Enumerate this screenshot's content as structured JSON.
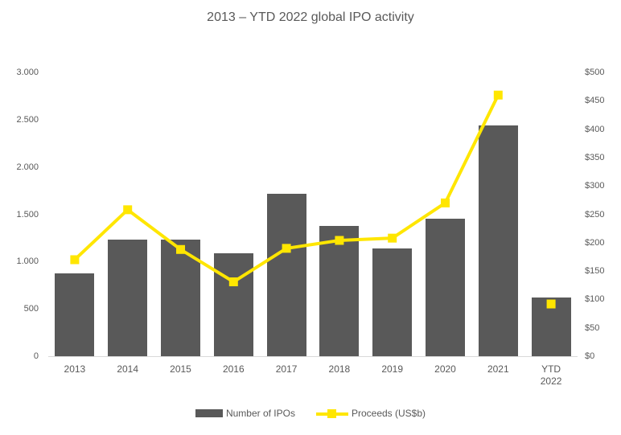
{
  "title": "2013 – YTD 2022 global IPO activity",
  "colors": {
    "bar": "#595959",
    "line": "#ffe600",
    "text": "#595959",
    "axis_line": "#d9d9d9",
    "background": "#ffffff"
  },
  "chart_data": {
    "type": "bar",
    "subtype": "combo-bar-line-dual-axis",
    "title": "2013 – YTD 2022 global IPO activity",
    "grid": false,
    "legend_position": "bottom",
    "categories": [
      "2013",
      "2014",
      "2015",
      "2016",
      "2017",
      "2018",
      "2019",
      "2020",
      "2021",
      "YTD 2022"
    ],
    "x_tick_display": [
      "2013",
      "2014",
      "2015",
      "2016",
      "2017",
      "2018",
      "2019",
      "2020",
      "2021",
      "YTD\n2022"
    ],
    "series": [
      {
        "name": "Number of IPOs",
        "type": "bar",
        "axis": "left",
        "color": "#595959",
        "values": [
          875,
          1230,
          1235,
          1090,
          1715,
          1375,
          1140,
          1450,
          2440,
          620
        ]
      },
      {
        "name": "Proceeds (US$b)",
        "type": "line",
        "axis": "right",
        "color": "#ffe600",
        "marker": "square",
        "connect_through_index": 8,
        "values": [
          170,
          258,
          188,
          131,
          190,
          204,
          208,
          270,
          460,
          92
        ]
      }
    ],
    "left_axis": {
      "min": 0,
      "max": 3000,
      "step": 500,
      "tick_labels": [
        "0",
        "500",
        "1.000",
        "1.500",
        "2.000",
        "2.500",
        "3.000"
      ]
    },
    "right_axis": {
      "min": 0,
      "max": 500,
      "step": 50,
      "tick_labels": [
        "$0",
        "$50",
        "$100",
        "$150",
        "$200",
        "$250",
        "$300",
        "$350",
        "$400",
        "$450",
        "$500"
      ]
    }
  }
}
